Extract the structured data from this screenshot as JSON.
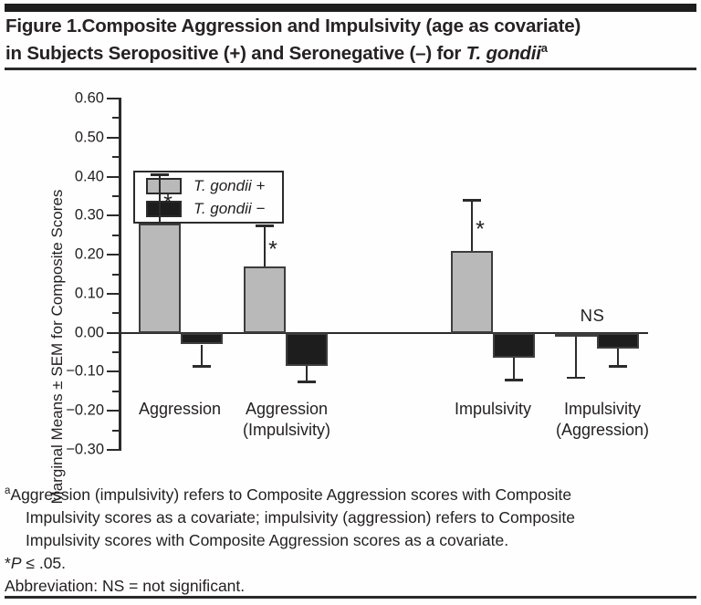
{
  "title": {
    "line1": "Figure 1.Composite Aggression and Impulsivity (age as covariate)",
    "line2_prefix": "in Subjects Seropositive (+) and Seronegative (–) for ",
    "line2_species": "T. gondii",
    "line2_footnote_mark": "a"
  },
  "chart_data": {
    "type": "bar",
    "ylabel": "Marginal Means ± SEM for Composite Scores",
    "ylim": [
      -0.3,
      0.6
    ],
    "ytick_major_step": 0.1,
    "ytick_minor_step": 0.05,
    "grid": false,
    "legend_position": "top-left",
    "categories": [
      {
        "lines": [
          "Aggression"
        ]
      },
      {
        "lines": [
          "Aggression",
          "(Impulsivity)"
        ]
      },
      {
        "lines": [
          "Impulsivity"
        ]
      },
      {
        "lines": [
          "Impulsivity",
          "(Aggression)"
        ]
      }
    ],
    "series": [
      {
        "name": "T. gondii +",
        "color": "#b9b9b9",
        "values": [
          0.28,
          0.17,
          0.21,
          -0.01
        ],
        "sem": [
          0.125,
          0.105,
          0.13,
          0.105
        ]
      },
      {
        "name": "T. gondii −",
        "color": "#1d1d1d",
        "values": [
          -0.03,
          -0.085,
          -0.065,
          -0.04
        ],
        "sem": [
          0.055,
          0.04,
          0.055,
          0.045
        ]
      }
    ],
    "significance_labels": [
      "*",
      "*",
      "*",
      "NS"
    ]
  },
  "footnotes": {
    "a_mark": "a",
    "a_lines": [
      "Aggression (impulsivity) refers to Composite Aggression scores with Composite",
      "Impulsivity scores as a covariate; impulsivity (aggression) refers to Composite",
      "Impulsivity scores with Composite Aggression scores as a covariate."
    ],
    "p_note_star": "*",
    "p_note_italic": "P",
    "p_note_rest": " ≤ .05.",
    "abbreviation": "Abbreviation: NS = not significant."
  }
}
